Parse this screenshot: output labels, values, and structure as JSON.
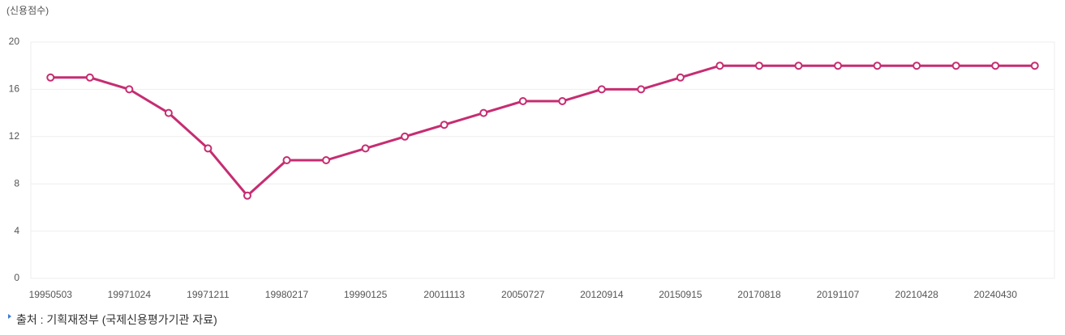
{
  "chart_data": {
    "type": "line",
    "y_label": "(신용점수)",
    "categories": [
      "19950503",
      null,
      "19971024",
      null,
      "19971211",
      null,
      "19980217",
      null,
      "19990125",
      null,
      "20011113",
      null,
      "20050727",
      null,
      "20120914",
      null,
      "20150915",
      null,
      "20170818",
      null,
      "20191107",
      null,
      "20210428",
      null,
      "20240430",
      null
    ],
    "series": [
      {
        "name": "신용점수",
        "color": "#c62d71",
        "values": [
          17,
          17,
          16,
          14,
          11,
          7,
          10,
          10,
          11,
          12,
          13,
          14,
          15,
          15,
          16,
          16,
          17,
          18,
          18,
          18,
          18,
          18,
          18,
          18,
          18,
          18
        ]
      }
    ],
    "ylim": [
      0,
      20
    ],
    "yticks": [
      0,
      4,
      8,
      12,
      16,
      20
    ],
    "grid": true
  },
  "source": "출처 : 기획재정부 (국제신용평가기관 자료)"
}
